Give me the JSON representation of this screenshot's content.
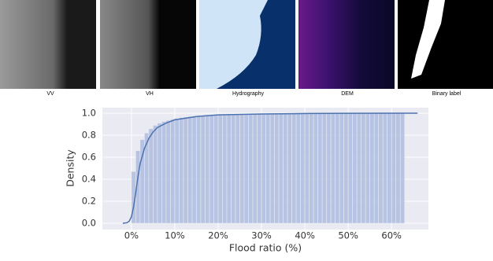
{
  "panels": [
    {
      "label": "VV"
    },
    {
      "label": "VH"
    },
    {
      "label": "Hydrography"
    },
    {
      "label": "DEM"
    },
    {
      "label": "Binary label"
    }
  ],
  "chart_data": {
    "type": "histogram",
    "xlabel": "Flood ratio (%)",
    "ylabel": "Density",
    "bins": [
      0,
      1,
      2,
      3,
      4,
      5,
      6,
      7,
      8,
      9,
      10,
      11,
      12,
      13,
      14,
      15,
      16,
      17,
      18,
      19,
      20,
      21,
      22,
      23,
      24,
      25,
      26,
      27,
      28,
      29,
      30,
      31,
      32,
      33,
      34,
      35,
      36,
      37,
      38,
      39,
      40,
      41,
      42,
      43,
      44,
      45,
      46,
      47,
      48,
      49,
      50,
      51,
      52,
      53,
      54,
      55,
      56,
      57,
      58,
      59,
      60,
      61,
      62,
      63
    ],
    "values": [
      0.47,
      0.66,
      0.76,
      0.82,
      0.86,
      0.89,
      0.91,
      0.925,
      0.935,
      0.945,
      0.953,
      0.96,
      0.965,
      0.97,
      0.974,
      0.977,
      0.98,
      0.982,
      0.984,
      0.986,
      0.988,
      0.989,
      0.99,
      0.991,
      0.992,
      0.993,
      0.994,
      0.995,
      0.995,
      0.996,
      0.996,
      0.997,
      0.997,
      0.997,
      0.998,
      0.998,
      0.998,
      0.998,
      0.999,
      0.999,
      0.999,
      0.999,
      0.999,
      0.999,
      0.999,
      0.999,
      1,
      1,
      1,
      1,
      1,
      1,
      1,
      1,
      1,
      1,
      1,
      1,
      1,
      1,
      1,
      1,
      1
    ],
    "color": "#a4b6dc",
    "line": {
      "color": "#4c72b0",
      "x": [
        -2,
        -1,
        -0.5,
        0,
        0.5,
        1,
        1.5,
        2,
        3,
        4,
        5,
        6,
        8,
        10,
        15,
        20,
        30,
        40,
        50,
        60,
        66
      ],
      "values": [
        0,
        0.005,
        0.02,
        0.06,
        0.15,
        0.28,
        0.42,
        0.54,
        0.68,
        0.77,
        0.83,
        0.87,
        0.91,
        0.94,
        0.97,
        0.985,
        0.993,
        0.997,
        0.999,
        1,
        1
      ]
    },
    "xlim": [
      -6.7,
      68.5
    ],
    "ylim": [
      -0.057,
      1.05
    ],
    "xticks": [
      {
        "value": 0,
        "label": "0%"
      },
      {
        "value": 10,
        "label": "10%"
      },
      {
        "value": 20,
        "label": "20%"
      },
      {
        "value": 30,
        "label": "30%"
      },
      {
        "value": 40,
        "label": "40%"
      },
      {
        "value": 50,
        "label": "50%"
      },
      {
        "value": 60,
        "label": "60%"
      }
    ],
    "yticks": [
      {
        "value": 0,
        "label": "0.0"
      },
      0.2,
      0.4,
      0.6,
      0.8,
      {
        "value": 1,
        "label": "1.0"
      }
    ],
    "grid": true
  }
}
